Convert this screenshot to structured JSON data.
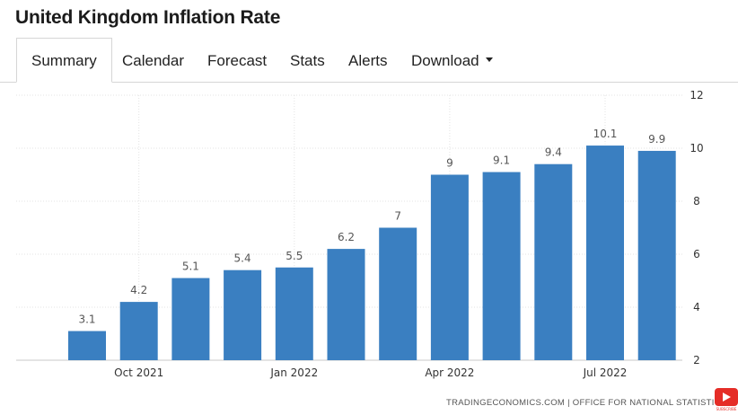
{
  "header": {
    "title": "United Kingdom Inflation Rate"
  },
  "tabs": {
    "summary": "Summary",
    "calendar": "Calendar",
    "forecast": "Forecast",
    "stats": "Stats",
    "alerts": "Alerts",
    "download": "Download"
  },
  "footer": {
    "source": "TRADINGECONOMICS.COM  |  OFFICE FOR NATIONAL STATISTICS"
  },
  "subscribe_label": "SUBSCRIBE",
  "colors": {
    "bar": "#3a7fc1",
    "grid": "#e3e3e3",
    "axis_text": "#333333"
  },
  "chart_data": {
    "type": "bar",
    "categories": [
      "2021-09",
      "2021-10",
      "2021-11",
      "2021-12",
      "2022-01",
      "2022-02",
      "2022-03",
      "2022-04",
      "2022-05",
      "2022-06",
      "2022-07",
      "2022-08"
    ],
    "values": [
      3.1,
      4.2,
      5.1,
      5.4,
      5.5,
      6.2,
      7,
      9,
      9.1,
      9.4,
      10.1,
      9.9
    ],
    "data_labels": [
      "3.1",
      "4.2",
      "5.1",
      "5.4",
      "5.5",
      "6.2",
      "7",
      "9",
      "9.1",
      "9.4",
      "10.1",
      "9.9"
    ],
    "x_tick_labels": [
      {
        "category": "2021-10",
        "label": "Oct 2021"
      },
      {
        "category": "2022-01",
        "label": "Jan 2022"
      },
      {
        "category": "2022-04",
        "label": "Apr 2022"
      },
      {
        "category": "2022-07",
        "label": "Jul 2022"
      }
    ],
    "y_ticks": [
      2,
      4,
      6,
      8,
      10,
      12
    ],
    "ylim": [
      2,
      12
    ],
    "y_axis_side": "right",
    "grid": true,
    "legend": false
  }
}
